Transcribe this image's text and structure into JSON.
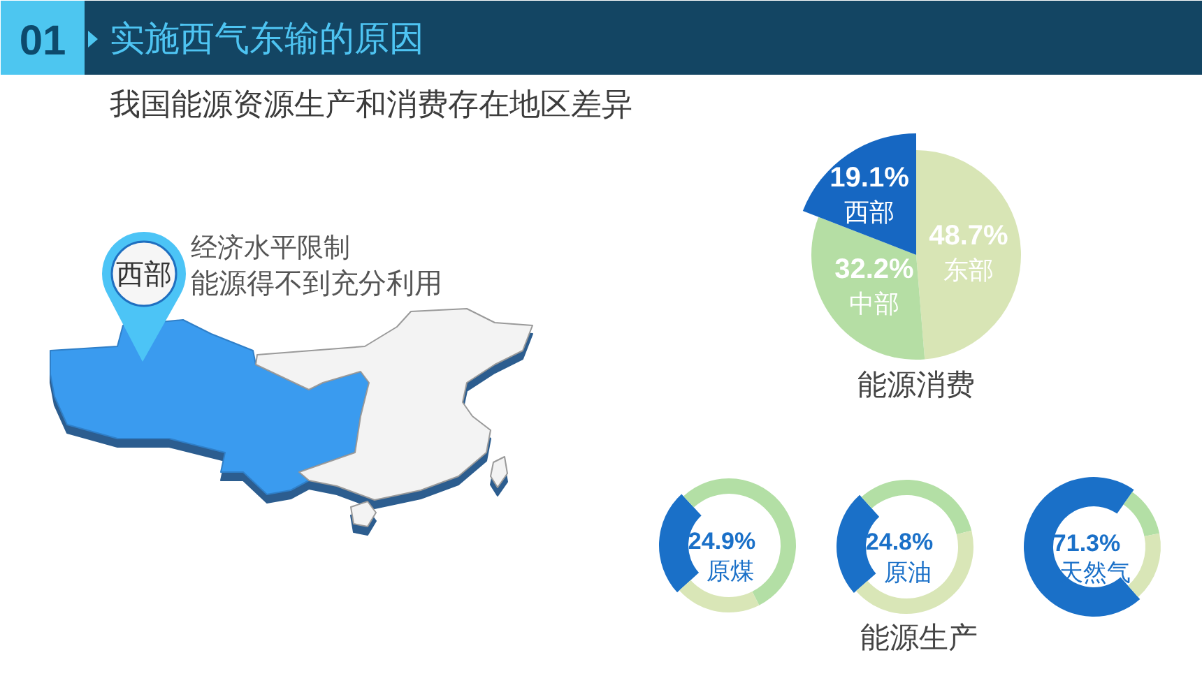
{
  "chart_data": [
    {
      "type": "other",
      "title": "实施西气东输的原因",
      "subtitle": "我国能源资源生产和消费存在地区差异",
      "annotations": [
        "01",
        "西部",
        "经济水平限制",
        "能源得不到充分利用"
      ]
    },
    {
      "type": "pie",
      "title": "能源消费",
      "categories": [
        "东部",
        "中部",
        "西部"
      ],
      "values": [
        48.7,
        32.2,
        19.1
      ],
      "colors": [
        "#d8e5b5",
        "#b5dea4",
        "#1667c2"
      ],
      "value_labels": [
        "48.7%",
        "32.2%",
        "19.1%"
      ]
    },
    {
      "type": "donut",
      "title": "原煤",
      "categories": [
        null,
        null,
        null
      ],
      "values": [
        24.9,
        54.4,
        20.7
      ],
      "colors": [
        "#1a70c8",
        "#b3dfa5",
        "#d9e6b7"
      ],
      "value_labels": [
        "24.9%",
        null,
        null
      ]
    },
    {
      "type": "donut",
      "title": "原油",
      "categories": [
        null,
        null,
        null
      ],
      "values": [
        24.8,
        32.8,
        42.4
      ],
      "colors": [
        "#1a70c8",
        "#b3dfa5",
        "#d9e6b7"
      ],
      "value_labels": [
        "24.8%",
        null,
        null
      ],
      "annotations": [
        "能源生产"
      ]
    },
    {
      "type": "donut",
      "title": "天然气",
      "categories": [
        null,
        null,
        null
      ],
      "values": [
        71.3,
        12.0,
        16.7
      ],
      "colors": [
        "#1a70c8",
        "#b3dfa5",
        "#d9e6b7"
      ],
      "value_labels": [
        "71.3%",
        null,
        null
      ]
    }
  ]
}
